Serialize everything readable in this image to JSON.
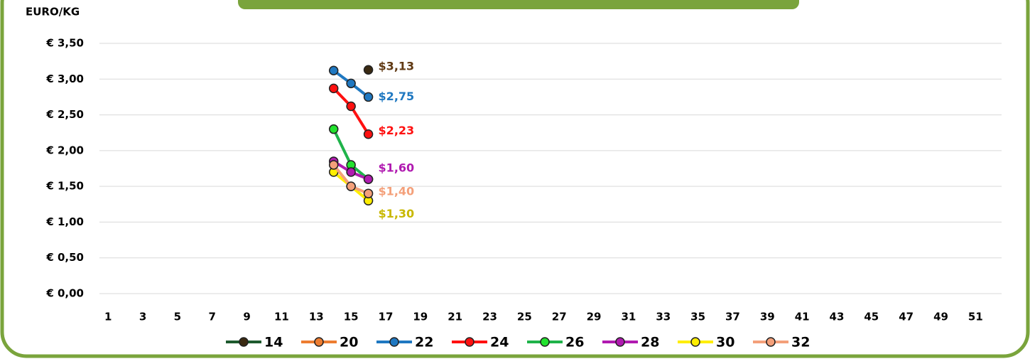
{
  "chart_data": {
    "type": "line",
    "y_label": "EURO/KG",
    "categories": [
      1,
      null,
      3,
      null,
      5,
      null,
      7,
      null,
      9,
      null,
      11,
      null,
      13,
      null,
      15,
      null,
      17,
      null,
      19,
      null,
      21,
      null,
      23,
      null,
      25,
      null,
      27,
      null,
      29,
      null,
      31,
      null,
      33,
      null,
      35,
      null,
      37,
      null,
      39,
      null,
      41,
      null,
      43,
      null,
      45,
      null,
      47,
      null,
      49,
      null,
      51,
      null
    ],
    "ylim": [
      0,
      3.5
    ],
    "yticks": [
      {
        "value": 0,
        "label": "€ 0,00"
      },
      {
        "value": 0.5,
        "label": "€ 0,50"
      },
      {
        "value": 1,
        "label": "€ 1,00"
      },
      {
        "value": 1.5,
        "label": "€ 1,50"
      },
      {
        "value": 2,
        "label": "€ 2,00"
      },
      {
        "value": 2.5,
        "label": "€ 2,50"
      },
      {
        "value": 3,
        "label": "€ 3,00"
      },
      {
        "value": 3.5,
        "label": "€ 3,50"
      }
    ],
    "grid": true,
    "legend": "bottom",
    "series": [
      {
        "name": "14",
        "color": "#1e5a2e",
        "marker_color": "#3a2a12",
        "label_color": "#603913",
        "values": [
          null,
          null,
          null,
          null,
          null,
          null,
          null,
          null,
          null,
          null,
          null,
          null,
          null,
          null,
          null,
          3.13,
          null,
          null,
          null,
          null,
          null,
          null,
          null,
          null,
          null,
          null,
          null,
          null,
          null,
          null,
          null,
          null,
          null,
          null,
          null,
          null,
          null,
          null,
          null,
          null,
          null,
          null,
          null,
          null,
          null,
          null,
          null,
          null,
          null,
          null,
          null,
          null
        ],
        "value_labels": [
          null,
          null,
          null,
          null,
          null,
          null,
          null,
          null,
          null,
          null,
          null,
          null,
          null,
          null,
          null,
          "$3,13",
          null,
          null,
          null,
          null,
          null,
          null,
          null,
          null,
          null,
          null,
          null,
          null,
          null,
          null,
          null,
          null,
          null,
          null,
          null,
          null,
          null,
          null,
          null,
          null,
          null,
          null,
          null,
          null,
          null,
          null,
          null,
          null,
          null,
          null,
          null,
          null
        ]
      },
      {
        "name": "20",
        "color": "#ed7d31",
        "marker_color": "#ed7d31",
        "values": [
          null,
          null,
          null,
          null,
          null,
          null,
          null,
          null,
          null,
          null,
          null,
          null,
          null,
          null,
          null,
          null,
          null,
          null,
          null,
          null,
          null,
          null,
          null,
          null,
          null,
          null,
          null,
          null,
          null,
          null,
          null,
          null,
          null,
          null,
          null,
          null,
          null,
          null,
          null,
          null,
          null,
          null,
          null,
          null,
          null,
          null,
          null,
          null,
          null,
          null,
          null,
          null
        ]
      },
      {
        "name": "22",
        "color": "#1f78c1",
        "marker_color": "#1f78c1",
        "label_color": "#1f78c1",
        "values": [
          null,
          null,
          null,
          null,
          null,
          null,
          null,
          null,
          null,
          null,
          null,
          null,
          null,
          3.12,
          2.94,
          2.75,
          null,
          null,
          null,
          null,
          null,
          null,
          null,
          null,
          null,
          null,
          null,
          null,
          null,
          null,
          null,
          null,
          null,
          null,
          null,
          null,
          null,
          null,
          null,
          null,
          null,
          null,
          null,
          null,
          null,
          null,
          null,
          null,
          null,
          null,
          null,
          null
        ],
        "value_labels": [
          null,
          null,
          null,
          null,
          null,
          null,
          null,
          null,
          null,
          null,
          null,
          null,
          null,
          null,
          null,
          "$2,75",
          null,
          null,
          null,
          null,
          null,
          null,
          null,
          null,
          null,
          null,
          null,
          null,
          null,
          null,
          null,
          null,
          null,
          null,
          null,
          null,
          null,
          null,
          null,
          null,
          null,
          null,
          null,
          null,
          null,
          null,
          null,
          null,
          null,
          null,
          null,
          null
        ]
      },
      {
        "name": "24",
        "color": "#ff1010",
        "marker_color": "#ff1010",
        "label_color": "#ff1010",
        "values": [
          null,
          null,
          null,
          null,
          null,
          null,
          null,
          null,
          null,
          null,
          null,
          null,
          null,
          2.87,
          2.62,
          2.23,
          null,
          null,
          null,
          null,
          null,
          null,
          null,
          null,
          null,
          null,
          null,
          null,
          null,
          null,
          null,
          null,
          null,
          null,
          null,
          null,
          null,
          null,
          null,
          null,
          null,
          null,
          null,
          null,
          null,
          null,
          null,
          null,
          null,
          null,
          null,
          null
        ],
        "value_labels": [
          null,
          null,
          null,
          null,
          null,
          null,
          null,
          null,
          null,
          null,
          null,
          null,
          null,
          null,
          null,
          "$2,23",
          null,
          null,
          null,
          null,
          null,
          null,
          null,
          null,
          null,
          null,
          null,
          null,
          null,
          null,
          null,
          null,
          null,
          null,
          null,
          null,
          null,
          null,
          null,
          null,
          null,
          null,
          null,
          null,
          null,
          null,
          null,
          null,
          null,
          null,
          null,
          null
        ]
      },
      {
        "name": "26",
        "color": "#1fb34a",
        "marker_color": "#22e22e",
        "values": [
          null,
          null,
          null,
          null,
          null,
          null,
          null,
          null,
          null,
          null,
          null,
          null,
          null,
          2.3,
          1.8,
          1.6,
          null,
          null,
          null,
          null,
          null,
          null,
          null,
          null,
          null,
          null,
          null,
          null,
          null,
          null,
          null,
          null,
          null,
          null,
          null,
          null,
          null,
          null,
          null,
          null,
          null,
          null,
          null,
          null,
          null,
          null,
          null,
          null,
          null,
          null,
          null,
          null
        ]
      },
      {
        "name": "28",
        "color": "#b01ab0",
        "marker_color": "#b01ab0",
        "label_color": "#b01ab0",
        "values": [
          null,
          null,
          null,
          null,
          null,
          null,
          null,
          null,
          null,
          null,
          null,
          null,
          null,
          1.85,
          1.7,
          1.6,
          null,
          null,
          null,
          null,
          null,
          null,
          null,
          null,
          null,
          null,
          null,
          null,
          null,
          null,
          null,
          null,
          null,
          null,
          null,
          null,
          null,
          null,
          null,
          null,
          null,
          null,
          null,
          null,
          null,
          null,
          null,
          null,
          null,
          null,
          null,
          null
        ],
        "value_labels": [
          null,
          null,
          null,
          null,
          null,
          null,
          null,
          null,
          null,
          null,
          null,
          null,
          null,
          null,
          null,
          "$1,60",
          null,
          null,
          null,
          null,
          null,
          null,
          null,
          null,
          null,
          null,
          null,
          null,
          null,
          null,
          null,
          null,
          null,
          null,
          null,
          null,
          null,
          null,
          null,
          null,
          null,
          null,
          null,
          null,
          null,
          null,
          null,
          null,
          null,
          null,
          null,
          null
        ]
      },
      {
        "name": "30",
        "color": "#ffee00",
        "marker_color": "#ffee00",
        "label_color": "#c8b800",
        "values": [
          null,
          null,
          null,
          null,
          null,
          null,
          null,
          null,
          null,
          null,
          null,
          null,
          null,
          1.7,
          1.5,
          1.3,
          null,
          null,
          null,
          null,
          null,
          null,
          null,
          null,
          null,
          null,
          null,
          null,
          null,
          null,
          null,
          null,
          null,
          null,
          null,
          null,
          null,
          null,
          null,
          null,
          null,
          null,
          null,
          null,
          null,
          null,
          null,
          null,
          null,
          null,
          null,
          null
        ],
        "value_labels": [
          null,
          null,
          null,
          null,
          null,
          null,
          null,
          null,
          null,
          null,
          null,
          null,
          null,
          null,
          null,
          "$1,30",
          null,
          null,
          null,
          null,
          null,
          null,
          null,
          null,
          null,
          null,
          null,
          null,
          null,
          null,
          null,
          null,
          null,
          null,
          null,
          null,
          null,
          null,
          null,
          null,
          null,
          null,
          null,
          null,
          null,
          null,
          null,
          null,
          null,
          null,
          null,
          null
        ]
      },
      {
        "name": "32",
        "color": "#f4a07a",
        "marker_color": "#f4a07a",
        "label_color": "#f4a07a",
        "values": [
          null,
          null,
          null,
          null,
          null,
          null,
          null,
          null,
          null,
          null,
          null,
          null,
          null,
          1.8,
          1.5,
          1.4,
          null,
          null,
          null,
          null,
          null,
          null,
          null,
          null,
          null,
          null,
          null,
          null,
          null,
          null,
          null,
          null,
          null,
          null,
          null,
          null,
          null,
          null,
          null,
          null,
          null,
          null,
          null,
          null,
          null,
          null,
          null,
          null,
          null,
          null,
          null,
          null
        ],
        "value_labels": [
          null,
          null,
          null,
          null,
          null,
          null,
          null,
          null,
          null,
          null,
          null,
          null,
          null,
          null,
          null,
          "$1,40",
          null,
          null,
          null,
          null,
          null,
          null,
          null,
          null,
          null,
          null,
          null,
          null,
          null,
          null,
          null,
          null,
          null,
          null,
          null,
          null,
          null,
          null,
          null,
          null,
          null,
          null,
          null,
          null,
          null,
          null,
          null,
          null,
          null,
          null,
          null,
          null
        ]
      }
    ]
  }
}
